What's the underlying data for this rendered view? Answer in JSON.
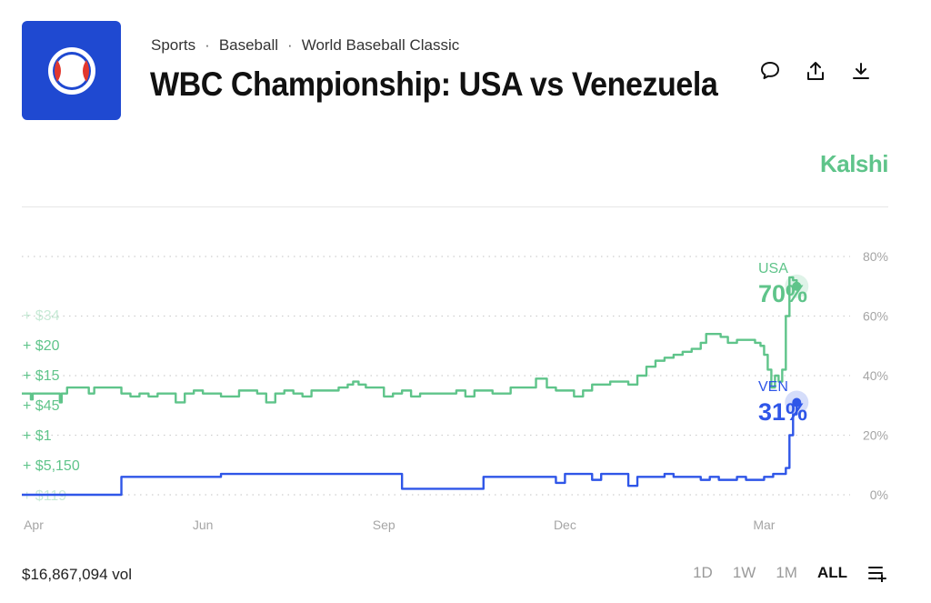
{
  "breadcrumb": [
    "Sports",
    "Baseball",
    "World Baseball Classic"
  ],
  "title": "WBC Championship: USA vs Venezuela",
  "brand": "Kalshi",
  "icons": {
    "logo": "baseball-icon",
    "comment": "comment-icon",
    "share": "share-icon",
    "download": "download-icon",
    "menu": "list-add-icon"
  },
  "colors": {
    "usa": "#5fc48a",
    "ven": "#2f56e8",
    "brand_bg": "#1f49d1"
  },
  "volume": "$16,867,094 vol",
  "ranges": [
    "1D",
    "1W",
    "1M",
    "ALL"
  ],
  "active_range": "ALL",
  "trade_ticker": [
    "+ $34",
    "+ $20",
    "+ $15",
    "+ $45",
    "+ $1",
    "+ $5,150",
    "+ $119"
  ],
  "chart_data": {
    "type": "line",
    "x_ticks": [
      "Apr",
      "Jun",
      "Sep",
      "Dec",
      "Mar"
    ],
    "y_ticks": [
      "0%",
      "20%",
      "40%",
      "60%",
      "80%"
    ],
    "ylim": [
      0,
      80
    ],
    "grid": true,
    "series": [
      {
        "name": "USA",
        "current_label": "70%",
        "values": [
          [
            0,
            34
          ],
          [
            0.05,
            32
          ],
          [
            0.06,
            34
          ],
          [
            0.1,
            34
          ],
          [
            0.11,
            34
          ],
          [
            0.2,
            34
          ],
          [
            0.21,
            31
          ],
          [
            0.22,
            34
          ],
          [
            0.25,
            36
          ],
          [
            0.35,
            36
          ],
          [
            0.37,
            34
          ],
          [
            0.4,
            36
          ],
          [
            0.5,
            36
          ],
          [
            0.55,
            34
          ],
          [
            0.6,
            33
          ],
          [
            0.65,
            34
          ],
          [
            0.7,
            33
          ],
          [
            0.75,
            34
          ],
          [
            0.8,
            34
          ],
          [
            0.85,
            31
          ],
          [
            0.9,
            34
          ],
          [
            0.95,
            35
          ],
          [
            1.0,
            34
          ],
          [
            1.1,
            33
          ],
          [
            1.2,
            35
          ],
          [
            1.3,
            34
          ],
          [
            1.35,
            31
          ],
          [
            1.4,
            34
          ],
          [
            1.45,
            35
          ],
          [
            1.5,
            34
          ],
          [
            1.55,
            33
          ],
          [
            1.6,
            35
          ],
          [
            1.7,
            35
          ],
          [
            1.75,
            36
          ],
          [
            1.8,
            37
          ],
          [
            1.83,
            38
          ],
          [
            1.86,
            37
          ],
          [
            1.9,
            36
          ],
          [
            1.95,
            36
          ],
          [
            2.0,
            33
          ],
          [
            2.05,
            34
          ],
          [
            2.1,
            35
          ],
          [
            2.15,
            33
          ],
          [
            2.2,
            34
          ],
          [
            2.3,
            34
          ],
          [
            2.4,
            35
          ],
          [
            2.45,
            33
          ],
          [
            2.5,
            35
          ],
          [
            2.6,
            34
          ],
          [
            2.7,
            36
          ],
          [
            2.8,
            36
          ],
          [
            2.84,
            39
          ],
          [
            2.9,
            36
          ],
          [
            2.95,
            35
          ],
          [
            3.0,
            35
          ],
          [
            3.05,
            33
          ],
          [
            3.1,
            35
          ],
          [
            3.15,
            37
          ],
          [
            3.2,
            37
          ],
          [
            3.25,
            38
          ],
          [
            3.3,
            38
          ],
          [
            3.35,
            37
          ],
          [
            3.4,
            40
          ],
          [
            3.45,
            43
          ],
          [
            3.5,
            45
          ],
          [
            3.55,
            46
          ],
          [
            3.6,
            47
          ],
          [
            3.65,
            48
          ],
          [
            3.7,
            49
          ],
          [
            3.75,
            51
          ],
          [
            3.78,
            54
          ],
          [
            3.82,
            54
          ],
          [
            3.86,
            53
          ],
          [
            3.9,
            51
          ],
          [
            3.95,
            52
          ],
          [
            4.0,
            52
          ],
          [
            4.05,
            51
          ],
          [
            4.08,
            50
          ],
          [
            4.1,
            47
          ],
          [
            4.12,
            42
          ],
          [
            4.14,
            36
          ],
          [
            4.16,
            40
          ],
          [
            4.18,
            38
          ],
          [
            4.2,
            42
          ],
          [
            4.22,
            60
          ],
          [
            4.24,
            73
          ],
          [
            4.26,
            72
          ],
          [
            4.28,
            70
          ]
        ]
      },
      {
        "name": "VEN",
        "current_label": "31%",
        "values": [
          [
            0,
            0
          ],
          [
            0.5,
            0
          ],
          [
            0.55,
            6
          ],
          [
            1.0,
            6
          ],
          [
            1.1,
            7
          ],
          [
            1.5,
            7
          ],
          [
            2.0,
            7
          ],
          [
            2.05,
            7
          ],
          [
            2.1,
            2
          ],
          [
            2.5,
            2
          ],
          [
            2.55,
            6
          ],
          [
            2.9,
            6
          ],
          [
            2.95,
            4
          ],
          [
            3.0,
            7
          ],
          [
            3.05,
            7
          ],
          [
            3.1,
            7
          ],
          [
            3.15,
            5
          ],
          [
            3.2,
            7
          ],
          [
            3.3,
            7
          ],
          [
            3.35,
            3
          ],
          [
            3.4,
            6
          ],
          [
            3.45,
            6
          ],
          [
            3.5,
            6
          ],
          [
            3.55,
            7
          ],
          [
            3.6,
            6
          ],
          [
            3.65,
            6
          ],
          [
            3.7,
            6
          ],
          [
            3.75,
            5
          ],
          [
            3.8,
            6
          ],
          [
            3.85,
            5
          ],
          [
            3.9,
            5
          ],
          [
            3.95,
            6
          ],
          [
            4.0,
            5
          ],
          [
            4.05,
            5
          ],
          [
            4.1,
            6
          ],
          [
            4.15,
            7
          ],
          [
            4.2,
            7
          ],
          [
            4.22,
            9
          ],
          [
            4.24,
            20
          ],
          [
            4.26,
            27
          ],
          [
            4.28,
            31
          ]
        ]
      }
    ],
    "x_range": [
      0,
      4.6
    ],
    "x_tick_positions": [
      0,
      1.0,
      2.0,
      3.0,
      4.1
    ]
  }
}
